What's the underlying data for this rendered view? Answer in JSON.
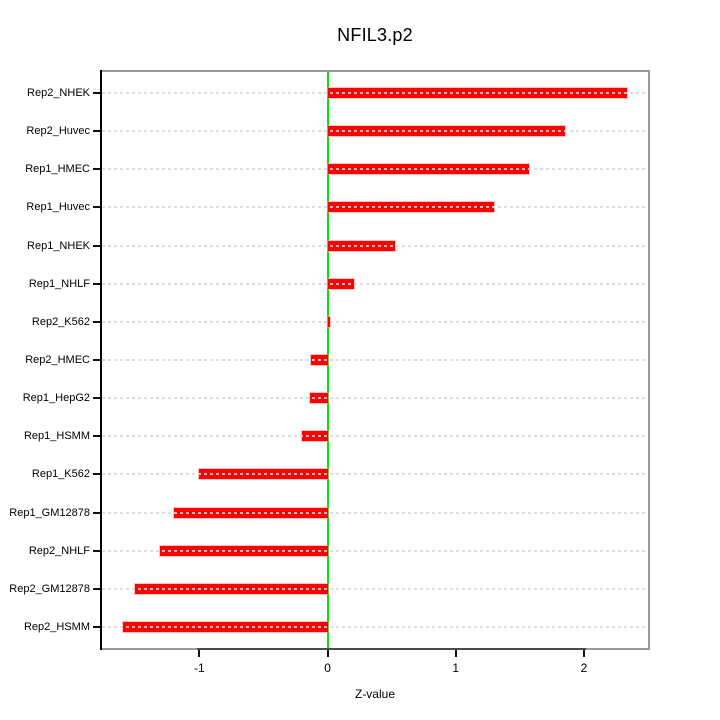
{
  "chart_data": {
    "type": "bar",
    "orientation": "horizontal",
    "title": "NFIL3.p2",
    "xlabel": "Z-value",
    "categories": [
      "Rep2_NHEK",
      "Rep2_Huvec",
      "Rep1_HMEC",
      "Rep1_Huvec",
      "Rep1_NHEK",
      "Rep1_NHLF",
      "Rep2_K562",
      "Rep2_HMEC",
      "Rep1_HepG2",
      "Rep1_HSMM",
      "Rep1_K562",
      "Rep1_GM12878",
      "Rep2_NHLF",
      "Rep2_GM12878",
      "Rep2_HSMM"
    ],
    "values": [
      2.34,
      1.85,
      1.57,
      1.3,
      0.53,
      0.21,
      0.02,
      -0.13,
      -0.14,
      -0.2,
      -1.0,
      -1.2,
      -1.31,
      -1.5,
      -1.6
    ],
    "xlim": [
      -1.76,
      2.5
    ],
    "xticks": [
      -1,
      0,
      1,
      2
    ],
    "xtick_labels": [
      "-1",
      "0",
      "1",
      "2"
    ],
    "grid": "dotted-horizontal",
    "legend": "none",
    "colors": {
      "bar": "#ff0000",
      "zero_line": "#00e400",
      "grid": "#d8d8d8",
      "box": "#9a9a9a",
      "axis": "#000000",
      "text": "#000000"
    }
  }
}
